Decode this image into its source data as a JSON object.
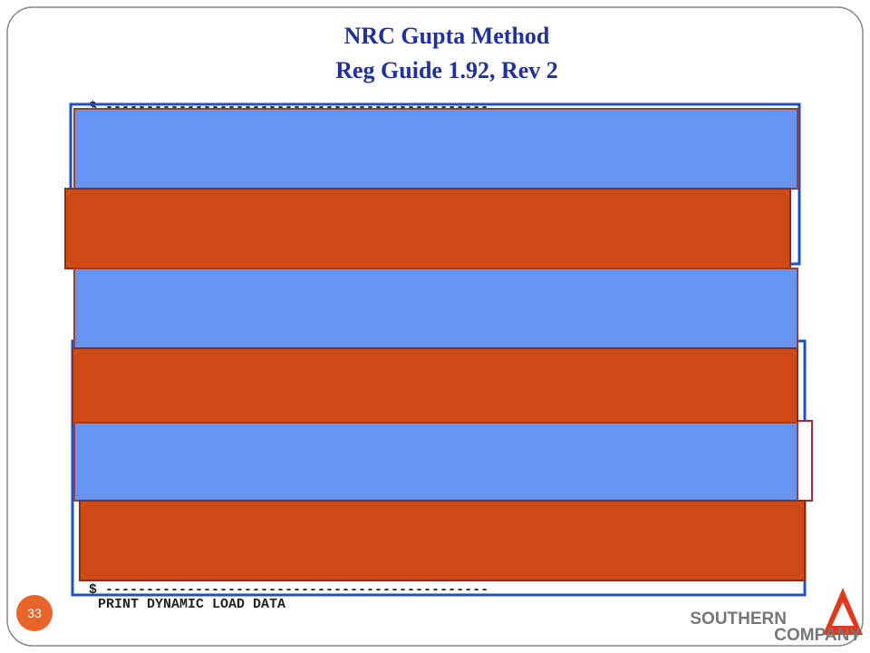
{
  "header": {
    "title": "NRC  Gupta Method",
    "subtitle": "Reg Guide 1.92, Rev 2"
  },
  "body": {
    "top_rule": "$ -----------------------------------------------",
    "bottom_rule": "$ -----------------------------------------------",
    "command": "PRINT DYNAMIC LOAD DATA"
  },
  "footer": {
    "page_number": "33",
    "logo_line1": "SOUTHERN",
    "logo_line2": "COMPANY"
  }
}
